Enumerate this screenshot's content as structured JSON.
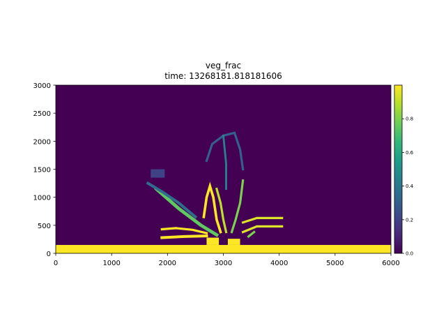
{
  "chart_data": {
    "type": "heatmap",
    "title": "veg_frac",
    "subtitle": "time: 13268181.818181606",
    "xlabel": "",
    "ylabel": "",
    "xlim": [
      0,
      6000
    ],
    "ylim": [
      0,
      3000
    ],
    "x_ticks": [
      "0",
      "1000",
      "2000",
      "3000",
      "4000",
      "5000",
      "6000"
    ],
    "y_ticks": [
      "0",
      "500",
      "1000",
      "1500",
      "2000",
      "2500",
      "3000"
    ],
    "colorbar": {
      "colormap": "viridis",
      "range": [
        0.0,
        1.0
      ],
      "ticks": [
        "0.0",
        "0.2",
        "0.4",
        "0.6",
        "0.8"
      ]
    },
    "background_value": 0.0,
    "colormap_stops": [
      "#440154",
      "#482878",
      "#3e4989",
      "#31688e",
      "#26828e",
      "#1f9e89",
      "#35b779",
      "#6ece58",
      "#b5de2b",
      "#fde725"
    ],
    "features": [
      {
        "name": "shoreline-band",
        "kind": "rect",
        "x": [
          0,
          6000
        ],
        "y": [
          0,
          150
        ],
        "value": 1.0
      },
      {
        "name": "channel-mouth-left",
        "kind": "rect",
        "x": [
          2700,
          2920
        ],
        "y": [
          150,
          280
        ],
        "value": 1.0
      },
      {
        "name": "channel-mouth-right",
        "kind": "rect",
        "x": [
          3080,
          3300
        ],
        "y": [
          150,
          260
        ],
        "value": 1.0
      },
      {
        "name": "west-levee-lower",
        "kind": "line",
        "points": [
          [
            1900,
            280
          ],
          [
            2300,
            300
          ],
          [
            2700,
            310
          ]
        ],
        "value": 1.0,
        "width": 50
      },
      {
        "name": "west-levee-upper",
        "kind": "line",
        "points": [
          [
            1900,
            430
          ],
          [
            2150,
            450
          ],
          [
            2450,
            420
          ],
          [
            2700,
            360
          ]
        ],
        "value": 1.0,
        "width": 40
      },
      {
        "name": "long-levee-nw",
        "kind": "line",
        "points": [
          [
            1800,
            1150
          ],
          [
            2200,
            800
          ],
          [
            2600,
            500
          ],
          [
            2880,
            330
          ]
        ],
        "value": 0.75,
        "width": 60
      },
      {
        "name": "long-levee-nw-faint",
        "kind": "line",
        "points": [
          [
            1650,
            1250
          ],
          [
            1900,
            1100
          ],
          [
            2200,
            900
          ],
          [
            2500,
            650
          ]
        ],
        "value": 0.35,
        "width": 50
      },
      {
        "name": "nw-patch",
        "kind": "rect",
        "x": [
          1700,
          1950
        ],
        "y": [
          1350,
          1500
        ],
        "value": 0.2
      },
      {
        "name": "center-left-arm",
        "kind": "line",
        "points": [
          [
            2650,
            650
          ],
          [
            2700,
            1000
          ],
          [
            2760,
            1200
          ],
          [
            2820,
            1000
          ],
          [
            2880,
            600
          ],
          [
            2950,
            380
          ]
        ],
        "value": 1.0,
        "width": 45
      },
      {
        "name": "center-arm",
        "kind": "line",
        "points": [
          [
            2880,
            1150
          ],
          [
            2950,
            900
          ],
          [
            3000,
            600
          ],
          [
            3050,
            380
          ]
        ],
        "value": 0.9,
        "width": 40
      },
      {
        "name": "center-right-arm",
        "kind": "line",
        "points": [
          [
            3350,
            1300
          ],
          [
            3300,
            900
          ],
          [
            3220,
            600
          ],
          [
            3150,
            380
          ]
        ],
        "value": 0.8,
        "width": 40
      },
      {
        "name": "upper-arc",
        "kind": "line",
        "points": [
          [
            2700,
            1650
          ],
          [
            2800,
            1950
          ],
          [
            3000,
            2100
          ],
          [
            3200,
            2150
          ],
          [
            3300,
            1850
          ],
          [
            3350,
            1500
          ]
        ],
        "value": 0.3,
        "width": 40
      },
      {
        "name": "upper-stalk",
        "kind": "line",
        "points": [
          [
            3000,
            2100
          ],
          [
            3050,
            1600
          ],
          [
            3050,
            1150
          ]
        ],
        "value": 0.45,
        "width": 35
      },
      {
        "name": "east-levee-upper",
        "kind": "line",
        "points": [
          [
            3350,
            550
          ],
          [
            3600,
            630
          ],
          [
            4050,
            630
          ]
        ],
        "value": 0.95,
        "width": 40
      },
      {
        "name": "east-levee-lower",
        "kind": "line",
        "points": [
          [
            3350,
            380
          ],
          [
            3600,
            480
          ],
          [
            4050,
            480
          ]
        ],
        "value": 0.95,
        "width": 40
      },
      {
        "name": "east-levee-tip",
        "kind": "line",
        "points": [
          [
            3450,
            300
          ],
          [
            3550,
            380
          ]
        ],
        "value": 0.8,
        "width": 40
      }
    ]
  }
}
